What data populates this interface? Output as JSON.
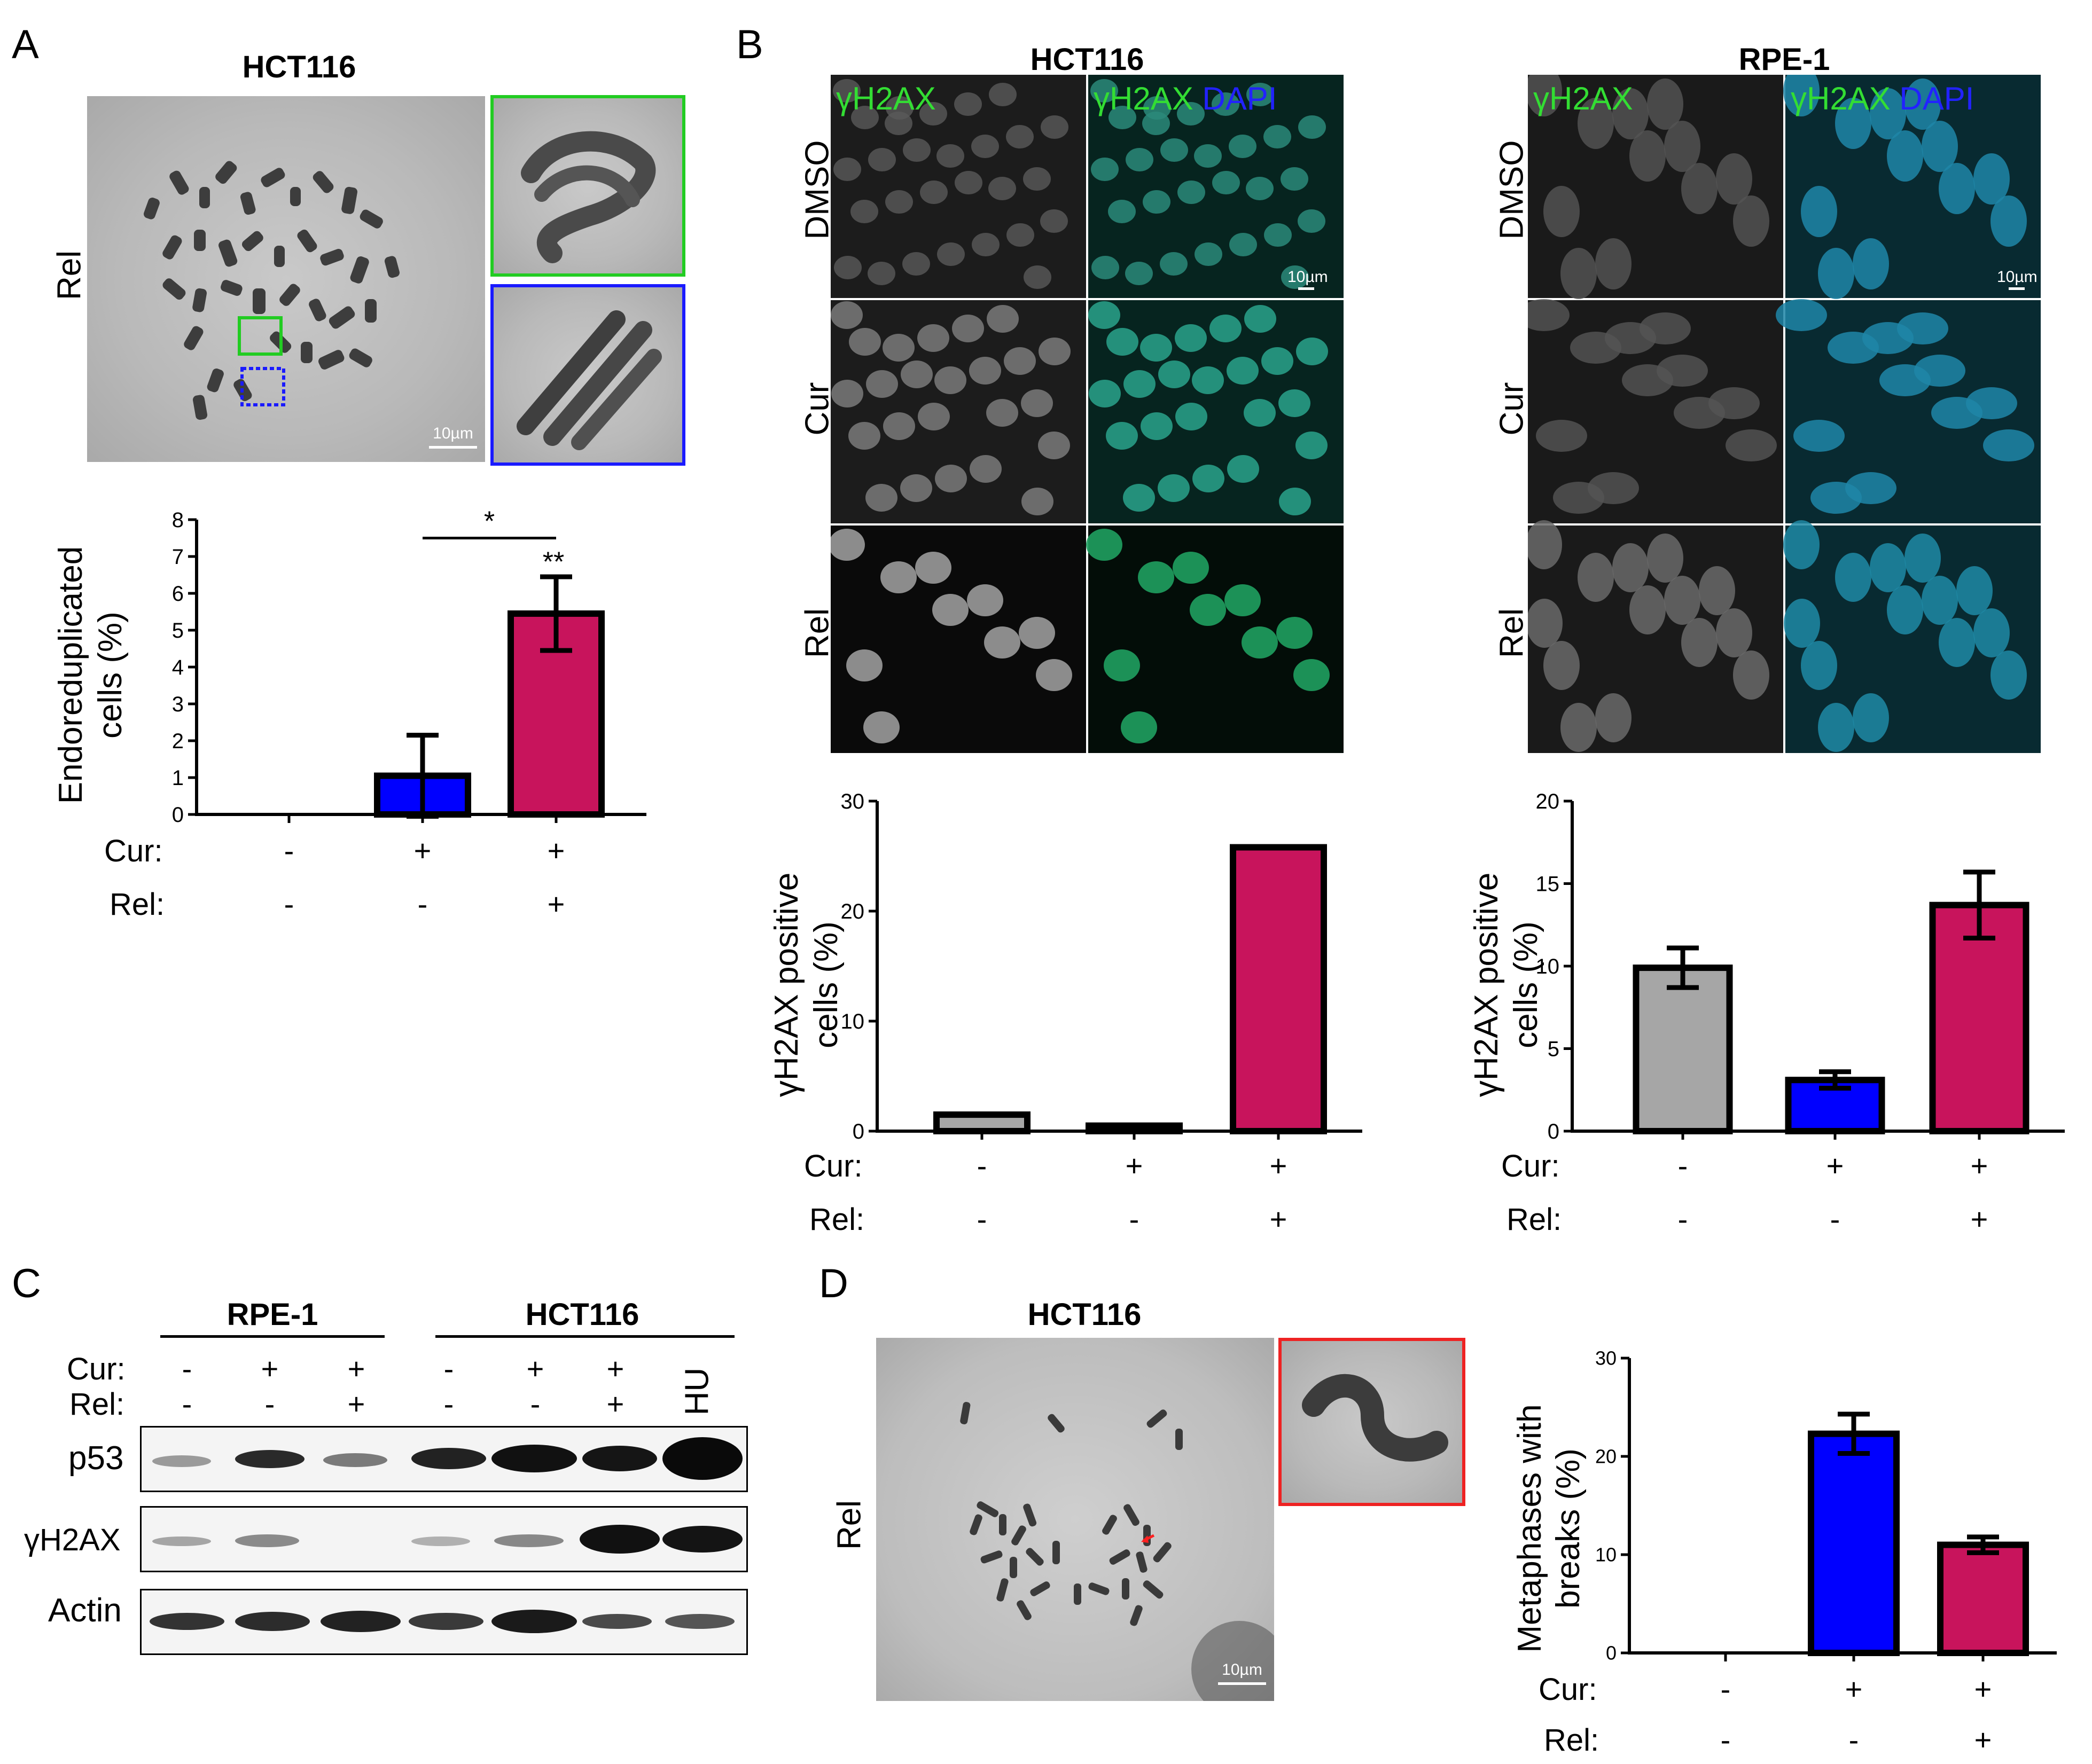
{
  "panels": {
    "a": "A",
    "b": "B",
    "c": "C",
    "d": "D"
  },
  "panel_a": {
    "title": "HCT116",
    "row_label": "Rel",
    "scale": "10µm",
    "chart": {
      "ylabel_line1": "Endoreduplicated",
      "ylabel_line2": "cells (%)",
      "yticks": [
        "0",
        "1",
        "2",
        "3",
        "4",
        "5",
        "6",
        "7",
        "8"
      ],
      "sig_bracket": "*",
      "sig_bar": "**"
    }
  },
  "panel_b": {
    "hct_title": "HCT116",
    "rpe_title": "RPE-1",
    "chan1": "γH2AX",
    "chan2a": "γH2AX",
    "chan2b": "DAPI",
    "rows": [
      "DMSO",
      "Cur",
      "Rel"
    ],
    "scale": "10µm",
    "hct_chart": {
      "ylabel_line1": "γH2AX positive",
      "ylabel_line2": "cells (%)",
      "yticks": [
        "0",
        "10",
        "20",
        "30"
      ]
    },
    "rpe_chart": {
      "ylabel_line1": "γH2AX positive",
      "ylabel_line2": "cells (%)",
      "yticks": [
        "0",
        "5",
        "10",
        "15",
        "20"
      ]
    }
  },
  "panel_c": {
    "rpe_title": "RPE-1",
    "hct_title": "HCT116",
    "cur_label": "Cur:",
    "rel_label": "Rel:",
    "cur_vals": [
      "-",
      "+",
      "+",
      "-",
      "+",
      "+"
    ],
    "rel_vals": [
      "-",
      "-",
      "+",
      "-",
      "-",
      "+"
    ],
    "hu_label": "HU",
    "rows": [
      "p53",
      "γH2AX",
      "Actin"
    ]
  },
  "panel_d": {
    "title": "HCT116",
    "row_label": "Rel",
    "scale": "10µm",
    "chart": {
      "ylabel_line1": "Metaphases with",
      "ylabel_line2": "breaks (%)",
      "yticks": [
        "0",
        "10",
        "20",
        "30"
      ]
    }
  },
  "conditions": {
    "cur_label": "Cur:",
    "rel_label": "Rel:",
    "cur": [
      "-",
      "+",
      "+"
    ],
    "rel": [
      "-",
      "-",
      "+"
    ]
  },
  "chart_data": [
    {
      "type": "bar",
      "title": "HCT116",
      "ylabel": "Endoreduplicated cells (%)",
      "categories": [
        "- / -",
        "+ / -",
        "+ / +"
      ],
      "values": [
        0,
        1.05,
        5.45
      ],
      "errors": [
        0,
        1.1,
        1.0
      ],
      "ylim": [
        0,
        8
      ],
      "colors": [
        "#888888",
        "#0000ff",
        "#c8145c"
      ]
    },
    {
      "type": "bar",
      "title": "HCT116",
      "ylabel": "γH2AX positive cells (%)",
      "categories": [
        "- / -",
        "+ / -",
        "+ / +"
      ],
      "values": [
        1.5,
        0.5,
        25.8
      ],
      "ylim": [
        0,
        30
      ],
      "colors": [
        "#a6a6a6",
        "#1a1a1a",
        "#c8145c"
      ]
    },
    {
      "type": "bar",
      "title": "RPE-1",
      "ylabel": "γH2AX positive cells (%)",
      "categories": [
        "- / -",
        "+ / -",
        "+ / +"
      ],
      "values": [
        9.9,
        3.1,
        13.7
      ],
      "errors": [
        1.2,
        0.5,
        2.0
      ],
      "ylim": [
        0,
        20
      ],
      "colors": [
        "#a6a6a6",
        "#0000ff",
        "#c8145c"
      ]
    },
    {
      "type": "bar",
      "title": "HCT116",
      "ylabel": "Metaphases with breaks (%)",
      "categories": [
        "- / -",
        "+ / -",
        "+ / +"
      ],
      "values": [
        0,
        22.3,
        11.0
      ],
      "errors": [
        0,
        2.0,
        0.8
      ],
      "ylim": [
        0,
        30
      ],
      "colors": [
        "#888888",
        "#0000ff",
        "#c8145c"
      ]
    }
  ]
}
